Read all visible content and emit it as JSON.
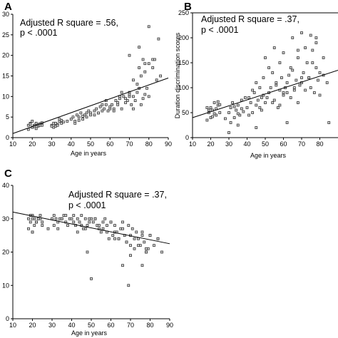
{
  "chart_data": [
    {
      "type": "scatter",
      "panel_label": "A",
      "title": "",
      "xlabel": "Age in years",
      "ylabel": "",
      "xlim": [
        10,
        90
      ],
      "ylim": [
        0,
        30
      ],
      "xticks": [
        10,
        20,
        30,
        40,
        50,
        60,
        70,
        80,
        90
      ],
      "yticks": [
        0,
        5,
        10,
        15,
        20,
        25,
        30
      ],
      "annotation_line1": "Adjusted R square = .56,",
      "annotation_line2": "p < .0001",
      "trend_line": [
        [
          10,
          1.0
        ],
        [
          90,
          14.5
        ]
      ],
      "grid": false,
      "legend": "none",
      "x": [
        18,
        19,
        20,
        21,
        22,
        23,
        24,
        25,
        18,
        20,
        22,
        24,
        19,
        21,
        23,
        25,
        20,
        22,
        30,
        31,
        32,
        33,
        34,
        35,
        36,
        31,
        33,
        35,
        30,
        32,
        34,
        38,
        40,
        41,
        42,
        43,
        44,
        45,
        46,
        47,
        48,
        49,
        50,
        42,
        44,
        46,
        48,
        50,
        52,
        53,
        54,
        55,
        56,
        57,
        58,
        59,
        60,
        52,
        54,
        56,
        58,
        60,
        61,
        62,
        63,
        64,
        65,
        66,
        67,
        68,
        69,
        70,
        62,
        64,
        66,
        68,
        70,
        71,
        72,
        73,
        74,
        75,
        76,
        77,
        78,
        79,
        80,
        72,
        74,
        76,
        78,
        80,
        82,
        84,
        86,
        70,
        75,
        78,
        82,
        85,
        65,
        70,
        72,
        75,
        77,
        80,
        83
      ],
      "y": [
        3,
        3.5,
        2.5,
        3,
        3.2,
        2.8,
        3.4,
        3,
        2,
        2.5,
        3.5,
        3,
        3.3,
        2.7,
        3.1,
        3.6,
        4,
        2.2,
        3,
        3.5,
        2.8,
        3.2,
        4,
        3.5,
        3.8,
        2.5,
        3,
        4.2,
        2.8,
        3.5,
        4.5,
        4,
        4.5,
        5,
        4,
        5.5,
        5,
        6,
        4.5,
        5.5,
        5,
        6.5,
        6,
        3.5,
        4.2,
        5.2,
        6,
        5.5,
        6.5,
        7,
        6,
        7.5,
        6.5,
        7,
        8,
        6.5,
        7,
        5.5,
        6,
        8,
        9,
        7.5,
        8,
        7,
        9,
        8.5,
        9.5,
        7,
        10,
        8.5,
        9,
        10,
        6.5,
        8,
        11,
        9.5,
        10.5,
        8,
        10,
        9,
        11,
        12,
        8,
        9.5,
        10.5,
        12,
        10,
        7,
        13,
        15,
        16,
        18,
        17,
        14,
        15,
        20,
        22,
        18,
        19,
        24,
        10,
        11,
        14,
        17,
        19,
        27,
        19
      ]
    },
    {
      "type": "scatter",
      "panel_label": "B",
      "title": "",
      "xlabel": "Age in years",
      "ylabel": "Duration discrimination scores",
      "xlim": [
        10,
        90
      ],
      "ylim": [
        0,
        250
      ],
      "xticks": [
        10,
        20,
        30,
        40,
        50,
        60,
        70,
        80
      ],
      "yticks": [
        0,
        50,
        100,
        150,
        200,
        250
      ],
      "annotation_line1": "Adjusted R square = .37,",
      "annotation_line2": "p < .0001",
      "trend_line": [
        [
          10,
          40
        ],
        [
          90,
          135
        ]
      ],
      "grid": false,
      "legend": "none",
      "x": [
        18,
        19,
        20,
        21,
        22,
        23,
        24,
        25,
        18,
        20,
        22,
        24,
        19,
        21,
        23,
        25,
        30,
        31,
        32,
        33,
        34,
        35,
        36,
        37,
        38,
        39,
        31,
        33,
        35,
        37,
        40,
        41,
        42,
        43,
        44,
        45,
        46,
        47,
        48,
        49,
        50,
        41,
        43,
        45,
        47,
        49,
        51,
        52,
        53,
        54,
        55,
        56,
        57,
        58,
        59,
        60,
        52,
        54,
        56,
        58,
        60,
        61,
        62,
        63,
        64,
        65,
        66,
        67,
        68,
        69,
        70,
        62,
        64,
        66,
        68,
        70,
        71,
        72,
        73,
        74,
        75,
        76,
        77,
        78,
        79,
        80,
        82,
        84,
        72,
        74,
        76,
        78,
        80,
        82,
        30,
        45,
        50,
        55,
        60,
        65,
        70,
        75,
        78,
        85,
        68,
        62,
        58,
        48,
        35,
        28
      ],
      "y": [
        60,
        50,
        40,
        55,
        70,
        45,
        65,
        50,
        35,
        60,
        48,
        72,
        55,
        42,
        58,
        66,
        50,
        60,
        70,
        40,
        55,
        65,
        45,
        75,
        52,
        80,
        30,
        62,
        48,
        58,
        60,
        80,
        70,
        50,
        90,
        65,
        75,
        100,
        55,
        85,
        70,
        45,
        95,
        110,
        60,
        120,
        80,
        90,
        100,
        130,
        75,
        110,
        60,
        95,
        120,
        85,
        140,
        70,
        105,
        150,
        90,
        100,
        110,
        125,
        80,
        135,
        95,
        115,
        70,
        105,
        120,
        90,
        140,
        100,
        160,
        110,
        130,
        95,
        150,
        120,
        100,
        175,
        90,
        140,
        115,
        130,
        160,
        110,
        180,
        120,
        150,
        200,
        85,
        125,
        10,
        20,
        160,
        180,
        170,
        200,
        210,
        205,
        190,
        30,
        175,
        30,
        65,
        80,
        25,
        38
      ]
    },
    {
      "type": "scatter",
      "panel_label": "C",
      "title": "",
      "xlabel": "Age in years",
      "ylabel": "",
      "xlim": [
        10,
        90
      ],
      "ylim": [
        0,
        40
      ],
      "xticks": [
        10,
        20,
        30,
        40,
        50,
        60,
        70,
        80,
        90
      ],
      "yticks": [
        0,
        10,
        20,
        30,
        40
      ],
      "annotation_line1": "Adjusted R square = .37,",
      "annotation_line2": "p < .0001",
      "trend_line": [
        [
          10,
          32
        ],
        [
          90,
          22.5
        ]
      ],
      "grid": false,
      "legend": "none",
      "x": [
        18,
        19,
        20,
        21,
        22,
        23,
        24,
        25,
        18,
        20,
        22,
        24,
        19,
        21,
        23,
        25,
        20,
        30,
        31,
        32,
        33,
        34,
        35,
        36,
        37,
        38,
        39,
        31,
        33,
        35,
        37,
        40,
        41,
        42,
        43,
        44,
        45,
        46,
        47,
        48,
        49,
        50,
        41,
        43,
        45,
        47,
        49,
        51,
        52,
        53,
        54,
        55,
        56,
        57,
        58,
        59,
        60,
        52,
        54,
        56,
        58,
        60,
        61,
        62,
        63,
        64,
        65,
        66,
        67,
        68,
        69,
        70,
        62,
        64,
        66,
        68,
        70,
        71,
        72,
        73,
        74,
        75,
        76,
        77,
        78,
        79,
        80,
        72,
        74,
        76,
        78,
        80,
        82,
        84,
        86,
        20,
        28,
        50,
        48,
        62,
        66,
        70,
        76,
        78,
        84,
        69
      ],
      "y": [
        30,
        29,
        31,
        30,
        29,
        30,
        31,
        28,
        27,
        30,
        29,
        30,
        31,
        28,
        30,
        29,
        26,
        30,
        31,
        30,
        29,
        30,
        30,
        31,
        29,
        28,
        30,
        28,
        27,
        30,
        31,
        30,
        29,
        28,
        30,
        29,
        31,
        27,
        30,
        28,
        29,
        30,
        31,
        26,
        28,
        27,
        30,
        29,
        30,
        28,
        27,
        26,
        29,
        30,
        28,
        24,
        29,
        30,
        28,
        27,
        26,
        29,
        25,
        28,
        26,
        24,
        27,
        29,
        25,
        23,
        28,
        22,
        26,
        24,
        27,
        23,
        25,
        27,
        21,
        26,
        24,
        22,
        25,
        23,
        20,
        21,
        25,
        24,
        22,
        26,
        21,
        25,
        22,
        24,
        20,
        26,
        27,
        12,
        20,
        24,
        16,
        19,
        16,
        20,
        24,
        10
      ]
    }
  ]
}
